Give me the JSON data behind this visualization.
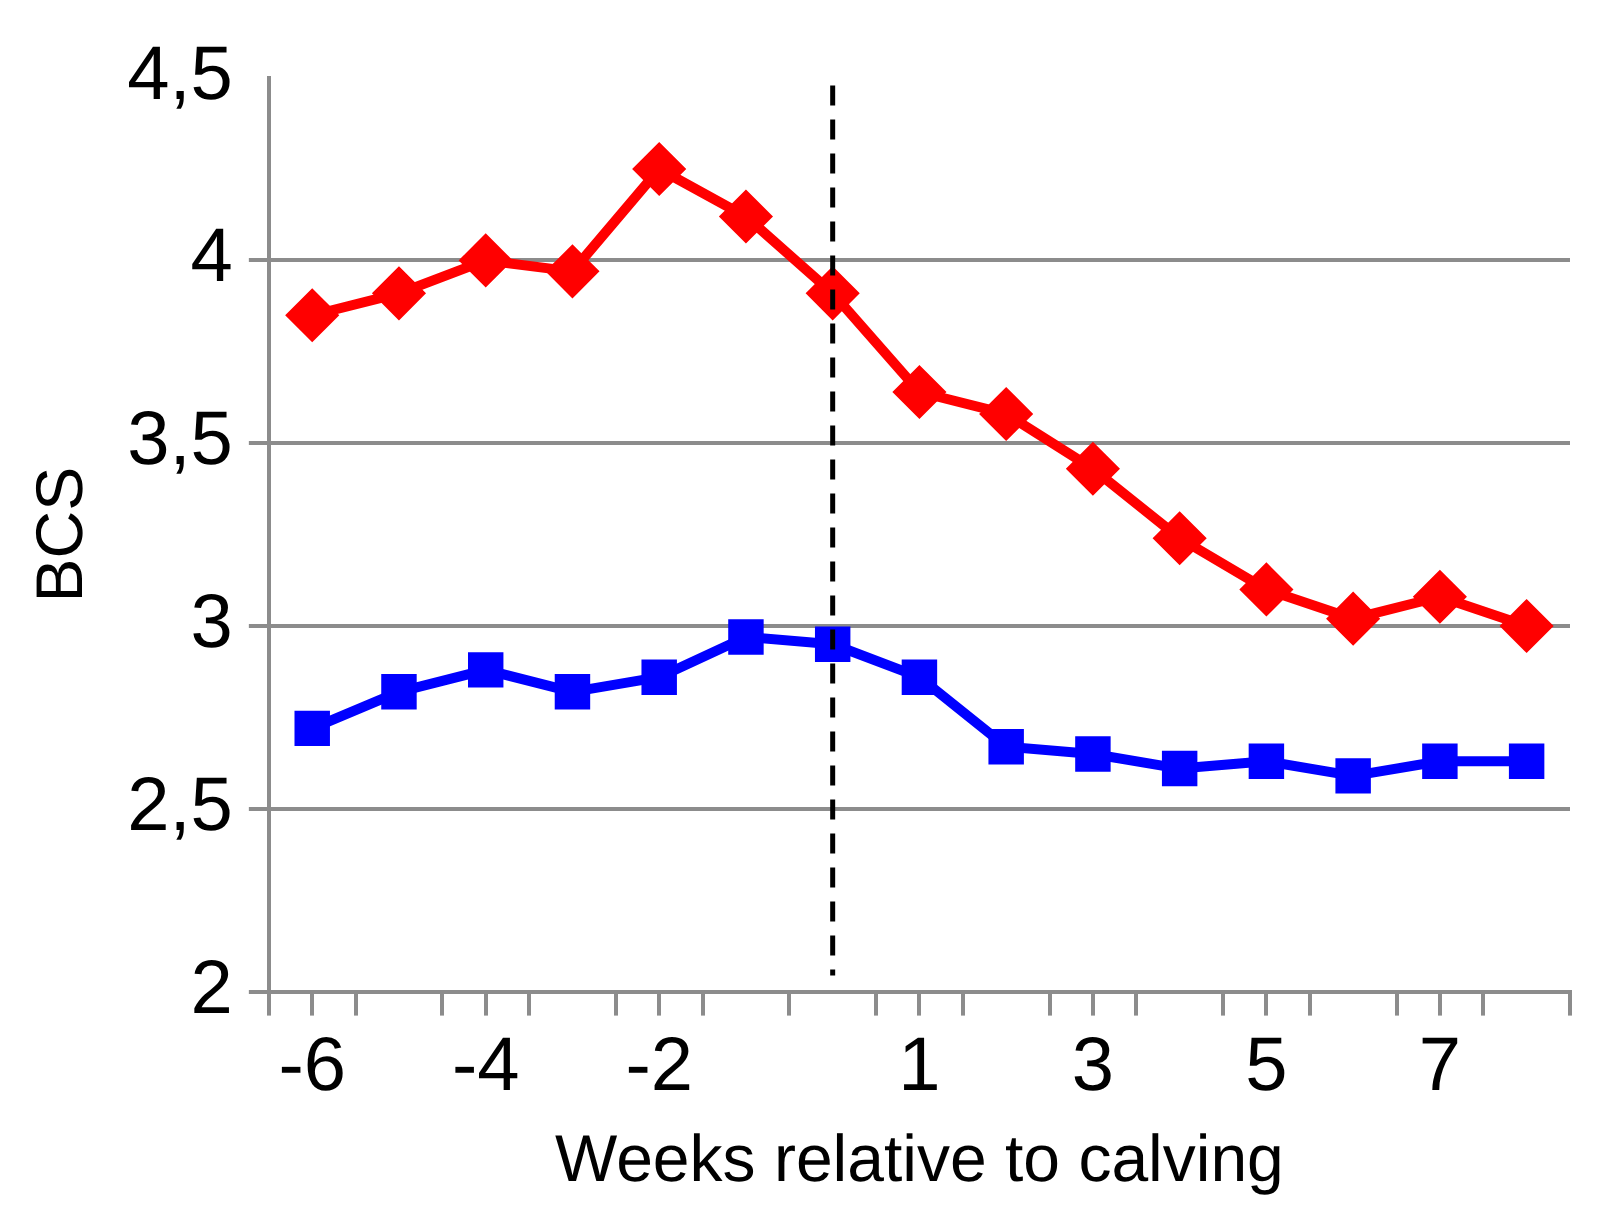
{
  "chart_data": {
    "type": "line",
    "xlabel": "Weeks relative to calving",
    "ylabel": "BCS",
    "x": [
      -6,
      -5,
      -4,
      -3,
      -2,
      -1,
      0,
      1,
      2,
      3,
      4,
      5,
      6,
      7,
      8
    ],
    "series": [
      {
        "color": "#ff0000",
        "marker": "diamond",
        "values": [
          3.85,
          3.91,
          4.0,
          3.97,
          4.25,
          4.12,
          3.91,
          3.64,
          3.58,
          3.43,
          3.24,
          3.1,
          3.02,
          3.08,
          3.0
        ]
      },
      {
        "color": "#0000ff",
        "marker": "square",
        "values": [
          2.72,
          2.82,
          2.88,
          2.82,
          2.86,
          2.97,
          2.95,
          2.86,
          2.67,
          2.65,
          2.61,
          2.63,
          2.59,
          2.63,
          2.63
        ]
      }
    ],
    "xlim": [
      -6.5,
      8.5
    ],
    "xticks": [
      {
        "value": -6.5,
        "label": null
      },
      -6,
      {
        "value": -5.5,
        "label": null
      },
      {
        "value": -4.5,
        "label": null
      },
      -4,
      {
        "value": -3.5,
        "label": null
      },
      {
        "value": -2.5,
        "label": null
      },
      -2,
      {
        "value": -1.5,
        "label": null
      },
      {
        "value": -0.5,
        "label": null
      },
      {
        "value": 0.5,
        "label": null
      },
      1,
      {
        "value": 1.5,
        "label": null
      },
      {
        "value": 2.5,
        "label": null
      },
      3,
      {
        "value": 3.5,
        "label": null
      },
      {
        "value": 4.5,
        "label": null
      },
      5,
      {
        "value": 5.5,
        "label": null
      },
      {
        "value": 6.5,
        "label": null
      },
      7,
      {
        "value": 7.5,
        "label": null
      },
      {
        "value": 8.5,
        "label": null
      }
    ],
    "ylim": [
      2,
      4.5
    ],
    "yticks": [
      2,
      {
        "value": 2.5,
        "label": "2,5"
      },
      3,
      {
        "value": 3.5,
        "label": "3,5"
      },
      4,
      {
        "value": 4.5,
        "label": "4,5"
      }
    ],
    "ref_lines": [
      {
        "axis": "x",
        "value": 0,
        "color": "#000000",
        "line_style": "dashed"
      }
    ],
    "grid": "y",
    "legend": false,
    "line_style": "solid"
  }
}
